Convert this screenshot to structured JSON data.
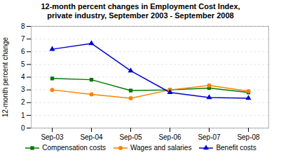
{
  "chart_data": {
    "type": "line",
    "title": "12-month percent changes in Employment Cost Index,",
    "subtitle": "private industry, September 2003 - September 2008",
    "ylabel": "12-month percent change",
    "categories": [
      "Sep-03",
      "Sep-04",
      "Sep-05",
      "Sep-06",
      "Sep-07",
      "Sep-08"
    ],
    "series": [
      {
        "name": "Compensation costs",
        "color": "#007700",
        "marker": "square",
        "values": [
          3.9,
          3.8,
          2.95,
          3.0,
          3.15,
          2.8
        ]
      },
      {
        "name": "Wages and salaries",
        "color": "#FF8000",
        "marker": "circle",
        "values": [
          3.0,
          2.65,
          2.35,
          3.0,
          3.35,
          2.9
        ]
      },
      {
        "name": "Benefit costs",
        "color": "#0000CC",
        "marker": "triangle",
        "values": [
          6.2,
          6.65,
          4.5,
          2.8,
          2.4,
          2.35
        ]
      }
    ],
    "ylim": [
      0,
      8
    ],
    "yticks": [
      0,
      1,
      2,
      3,
      4,
      5,
      6,
      7,
      8
    ],
    "grid": true,
    "legend": "bottom"
  }
}
